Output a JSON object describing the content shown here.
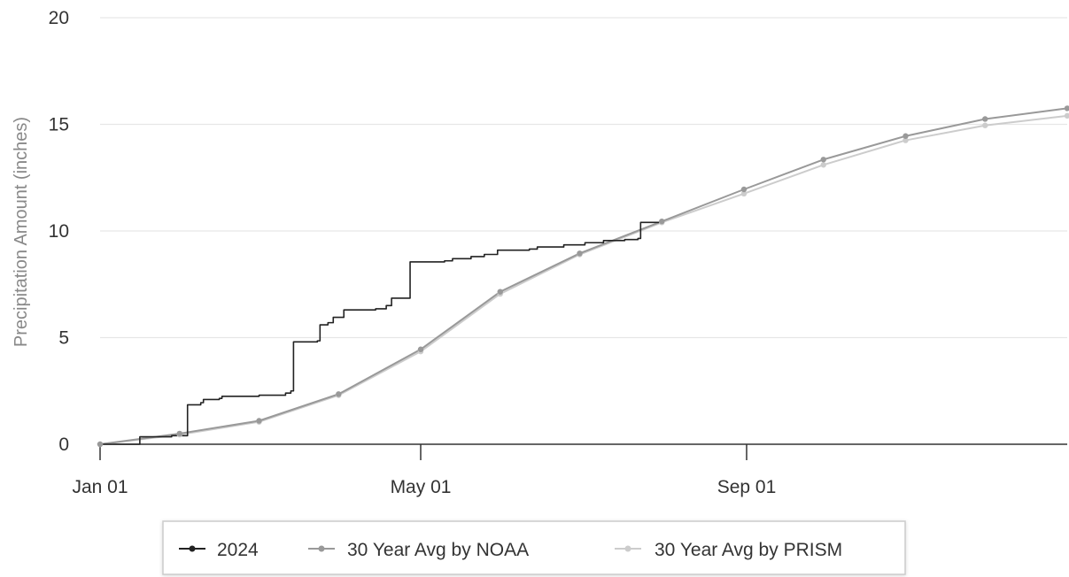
{
  "chart_data": {
    "type": "line",
    "title": "",
    "xlabel": "",
    "ylabel": "Precipitation Amount (inches)",
    "x_ticks": [
      {
        "label": "Jan 01",
        "day": 0
      },
      {
        "label": "May 01",
        "day": 121
      },
      {
        "label": "Sep 01",
        "day": 244
      }
    ],
    "y_ticks": [
      "0",
      "5",
      "10",
      "15",
      "20"
    ],
    "xlim": [
      0,
      365
    ],
    "ylim": [
      0,
      20
    ],
    "grid": true,
    "legend_position": "bottom",
    "series": [
      {
        "name": "2024",
        "color": "#222222",
        "style": "step",
        "points": [
          [
            0,
            0
          ],
          [
            14,
            0
          ],
          [
            15,
            0.35
          ],
          [
            27,
            0.4
          ],
          [
            32,
            0.4
          ],
          [
            33,
            1.85
          ],
          [
            38,
            1.95
          ],
          [
            39,
            2.1
          ],
          [
            45,
            2.15
          ],
          [
            46,
            2.25
          ],
          [
            60,
            2.3
          ],
          [
            70,
            2.4
          ],
          [
            72,
            2.5
          ],
          [
            73,
            4.8
          ],
          [
            82,
            4.85
          ],
          [
            83,
            5.6
          ],
          [
            86,
            5.7
          ],
          [
            88,
            5.95
          ],
          [
            92,
            6.3
          ],
          [
            104,
            6.35
          ],
          [
            108,
            6.5
          ],
          [
            110,
            6.85
          ],
          [
            115,
            6.85
          ],
          [
            117,
            8.55
          ],
          [
            130,
            8.6
          ],
          [
            133,
            8.7
          ],
          [
            140,
            8.8
          ],
          [
            145,
            8.9
          ],
          [
            150,
            9.1
          ],
          [
            162,
            9.15
          ],
          [
            165,
            9.25
          ],
          [
            175,
            9.35
          ],
          [
            183,
            9.45
          ],
          [
            190,
            9.55
          ],
          [
            198,
            9.6
          ],
          [
            203,
            9.65
          ],
          [
            204,
            10.4
          ],
          [
            212,
            10.45
          ]
        ]
      },
      {
        "name": "30 Year Avg by NOAA",
        "color": "#999999",
        "style": "line",
        "points": [
          [
            0,
            0
          ],
          [
            30,
            0.5
          ],
          [
            60,
            1.1
          ],
          [
            90,
            2.35
          ],
          [
            121,
            4.45
          ],
          [
            151,
            7.15
          ],
          [
            181,
            8.95
          ],
          [
            212,
            10.45
          ],
          [
            243,
            11.95
          ],
          [
            273,
            13.35
          ],
          [
            304,
            14.45
          ],
          [
            334,
            15.25
          ],
          [
            365,
            15.75
          ]
        ]
      },
      {
        "name": "30 Year Avg by PRISM",
        "color": "#cccccc",
        "style": "line",
        "points": [
          [
            0,
            0
          ],
          [
            30,
            0.45
          ],
          [
            60,
            1.05
          ],
          [
            90,
            2.3
          ],
          [
            121,
            4.35
          ],
          [
            151,
            7.05
          ],
          [
            181,
            8.9
          ],
          [
            212,
            10.4
          ],
          [
            243,
            11.75
          ],
          [
            273,
            13.1
          ],
          [
            304,
            14.25
          ],
          [
            334,
            14.95
          ],
          [
            365,
            15.4
          ]
        ]
      }
    ]
  }
}
